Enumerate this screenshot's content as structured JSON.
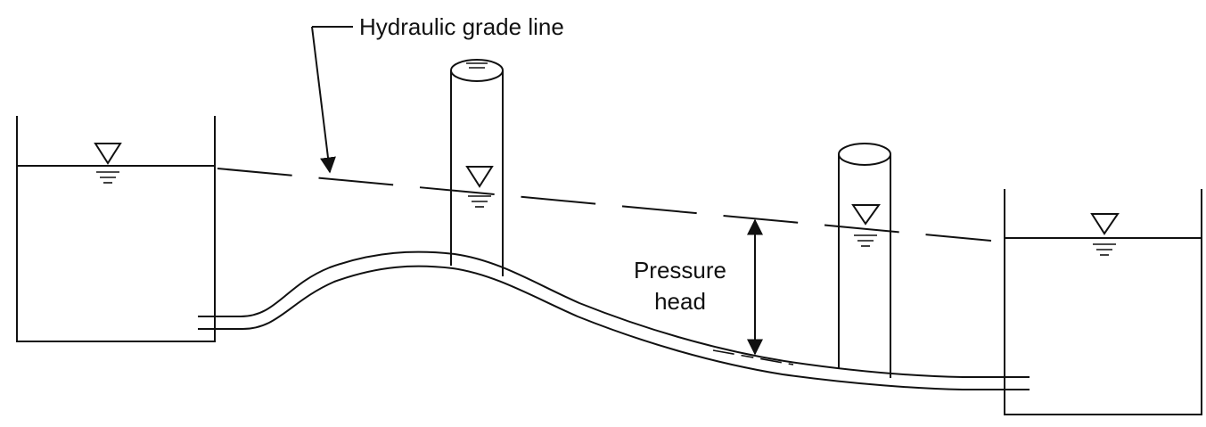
{
  "labels": {
    "hgl": "Hydraulic grade line",
    "pressure_line1": "Pressure",
    "pressure_line2": "head"
  },
  "colors": {
    "ink": "#111111",
    "background": "#ffffff"
  }
}
